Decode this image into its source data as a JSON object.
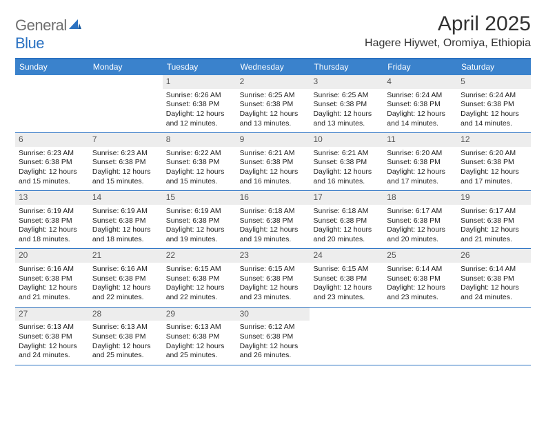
{
  "logo": {
    "text1": "General",
    "text2": "Blue"
  },
  "title": "April 2025",
  "location": "Hagere Hiywet, Oromiya, Ethiopia",
  "colors": {
    "brand_blue": "#3a82cc",
    "rule_blue": "#2b72c2",
    "logo_gray": "#6f6f6f",
    "daynum_bg": "#ededed",
    "text": "#222222"
  },
  "weekdays": [
    "Sunday",
    "Monday",
    "Tuesday",
    "Wednesday",
    "Thursday",
    "Friday",
    "Saturday"
  ],
  "weeks": [
    [
      null,
      null,
      {
        "n": "1",
        "sr": "6:26 AM",
        "ss": "6:38 PM",
        "dl": "12 hours and 12 minutes."
      },
      {
        "n": "2",
        "sr": "6:25 AM",
        "ss": "6:38 PM",
        "dl": "12 hours and 13 minutes."
      },
      {
        "n": "3",
        "sr": "6:25 AM",
        "ss": "6:38 PM",
        "dl": "12 hours and 13 minutes."
      },
      {
        "n": "4",
        "sr": "6:24 AM",
        "ss": "6:38 PM",
        "dl": "12 hours and 14 minutes."
      },
      {
        "n": "5",
        "sr": "6:24 AM",
        "ss": "6:38 PM",
        "dl": "12 hours and 14 minutes."
      }
    ],
    [
      {
        "n": "6",
        "sr": "6:23 AM",
        "ss": "6:38 PM",
        "dl": "12 hours and 15 minutes."
      },
      {
        "n": "7",
        "sr": "6:23 AM",
        "ss": "6:38 PM",
        "dl": "12 hours and 15 minutes."
      },
      {
        "n": "8",
        "sr": "6:22 AM",
        "ss": "6:38 PM",
        "dl": "12 hours and 15 minutes."
      },
      {
        "n": "9",
        "sr": "6:21 AM",
        "ss": "6:38 PM",
        "dl": "12 hours and 16 minutes."
      },
      {
        "n": "10",
        "sr": "6:21 AM",
        "ss": "6:38 PM",
        "dl": "12 hours and 16 minutes."
      },
      {
        "n": "11",
        "sr": "6:20 AM",
        "ss": "6:38 PM",
        "dl": "12 hours and 17 minutes."
      },
      {
        "n": "12",
        "sr": "6:20 AM",
        "ss": "6:38 PM",
        "dl": "12 hours and 17 minutes."
      }
    ],
    [
      {
        "n": "13",
        "sr": "6:19 AM",
        "ss": "6:38 PM",
        "dl": "12 hours and 18 minutes."
      },
      {
        "n": "14",
        "sr": "6:19 AM",
        "ss": "6:38 PM",
        "dl": "12 hours and 18 minutes."
      },
      {
        "n": "15",
        "sr": "6:19 AM",
        "ss": "6:38 PM",
        "dl": "12 hours and 19 minutes."
      },
      {
        "n": "16",
        "sr": "6:18 AM",
        "ss": "6:38 PM",
        "dl": "12 hours and 19 minutes."
      },
      {
        "n": "17",
        "sr": "6:18 AM",
        "ss": "6:38 PM",
        "dl": "12 hours and 20 minutes."
      },
      {
        "n": "18",
        "sr": "6:17 AM",
        "ss": "6:38 PM",
        "dl": "12 hours and 20 minutes."
      },
      {
        "n": "19",
        "sr": "6:17 AM",
        "ss": "6:38 PM",
        "dl": "12 hours and 21 minutes."
      }
    ],
    [
      {
        "n": "20",
        "sr": "6:16 AM",
        "ss": "6:38 PM",
        "dl": "12 hours and 21 minutes."
      },
      {
        "n": "21",
        "sr": "6:16 AM",
        "ss": "6:38 PM",
        "dl": "12 hours and 22 minutes."
      },
      {
        "n": "22",
        "sr": "6:15 AM",
        "ss": "6:38 PM",
        "dl": "12 hours and 22 minutes."
      },
      {
        "n": "23",
        "sr": "6:15 AM",
        "ss": "6:38 PM",
        "dl": "12 hours and 23 minutes."
      },
      {
        "n": "24",
        "sr": "6:15 AM",
        "ss": "6:38 PM",
        "dl": "12 hours and 23 minutes."
      },
      {
        "n": "25",
        "sr": "6:14 AM",
        "ss": "6:38 PM",
        "dl": "12 hours and 23 minutes."
      },
      {
        "n": "26",
        "sr": "6:14 AM",
        "ss": "6:38 PM",
        "dl": "12 hours and 24 minutes."
      }
    ],
    [
      {
        "n": "27",
        "sr": "6:13 AM",
        "ss": "6:38 PM",
        "dl": "12 hours and 24 minutes."
      },
      {
        "n": "28",
        "sr": "6:13 AM",
        "ss": "6:38 PM",
        "dl": "12 hours and 25 minutes."
      },
      {
        "n": "29",
        "sr": "6:13 AM",
        "ss": "6:38 PM",
        "dl": "12 hours and 25 minutes."
      },
      {
        "n": "30",
        "sr": "6:12 AM",
        "ss": "6:38 PM",
        "dl": "12 hours and 26 minutes."
      },
      null,
      null,
      null
    ]
  ],
  "labels": {
    "sunrise": "Sunrise:",
    "sunset": "Sunset:",
    "daylight": "Daylight:"
  }
}
